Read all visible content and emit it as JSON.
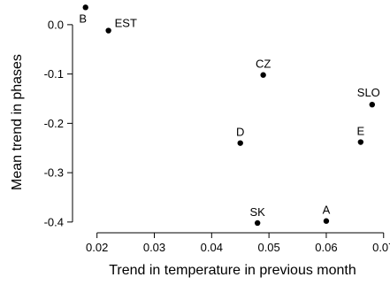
{
  "chart_data": {
    "type": "scatter",
    "title": "",
    "xlabel": "Trend in temperature in previous month",
    "ylabel": "Mean trend in phases",
    "xlim": [
      0.0165,
      0.0705
    ],
    "ylim": [
      -0.42,
      0.05
    ],
    "xticks": [
      0.02,
      0.03,
      0.04,
      0.05,
      0.06,
      0.07
    ],
    "xtick_labels": [
      "0.02",
      "0.03",
      "0.04",
      "0.05",
      "0.06",
      "0.07"
    ],
    "yticks": [
      0.0,
      -0.1,
      -0.2,
      -0.3,
      -0.4
    ],
    "ytick_labels": [
      "0.0",
      "-0.1",
      "-0.2",
      "-0.3",
      "-0.4"
    ],
    "grid": false,
    "legend": "none",
    "points": [
      {
        "label": "B",
        "x": 0.018,
        "y": 0.035
      },
      {
        "label": "EST",
        "x": 0.022,
        "y": -0.012
      },
      {
        "label": "CZ",
        "x": 0.049,
        "y": -0.102
      },
      {
        "label": "SLO",
        "x": 0.068,
        "y": -0.162
      },
      {
        "label": "D",
        "x": 0.045,
        "y": -0.24
      },
      {
        "label": "E",
        "x": 0.066,
        "y": -0.238
      },
      {
        "label": "SK",
        "x": 0.048,
        "y": -0.402
      },
      {
        "label": "A",
        "x": 0.06,
        "y": -0.398
      }
    ]
  }
}
